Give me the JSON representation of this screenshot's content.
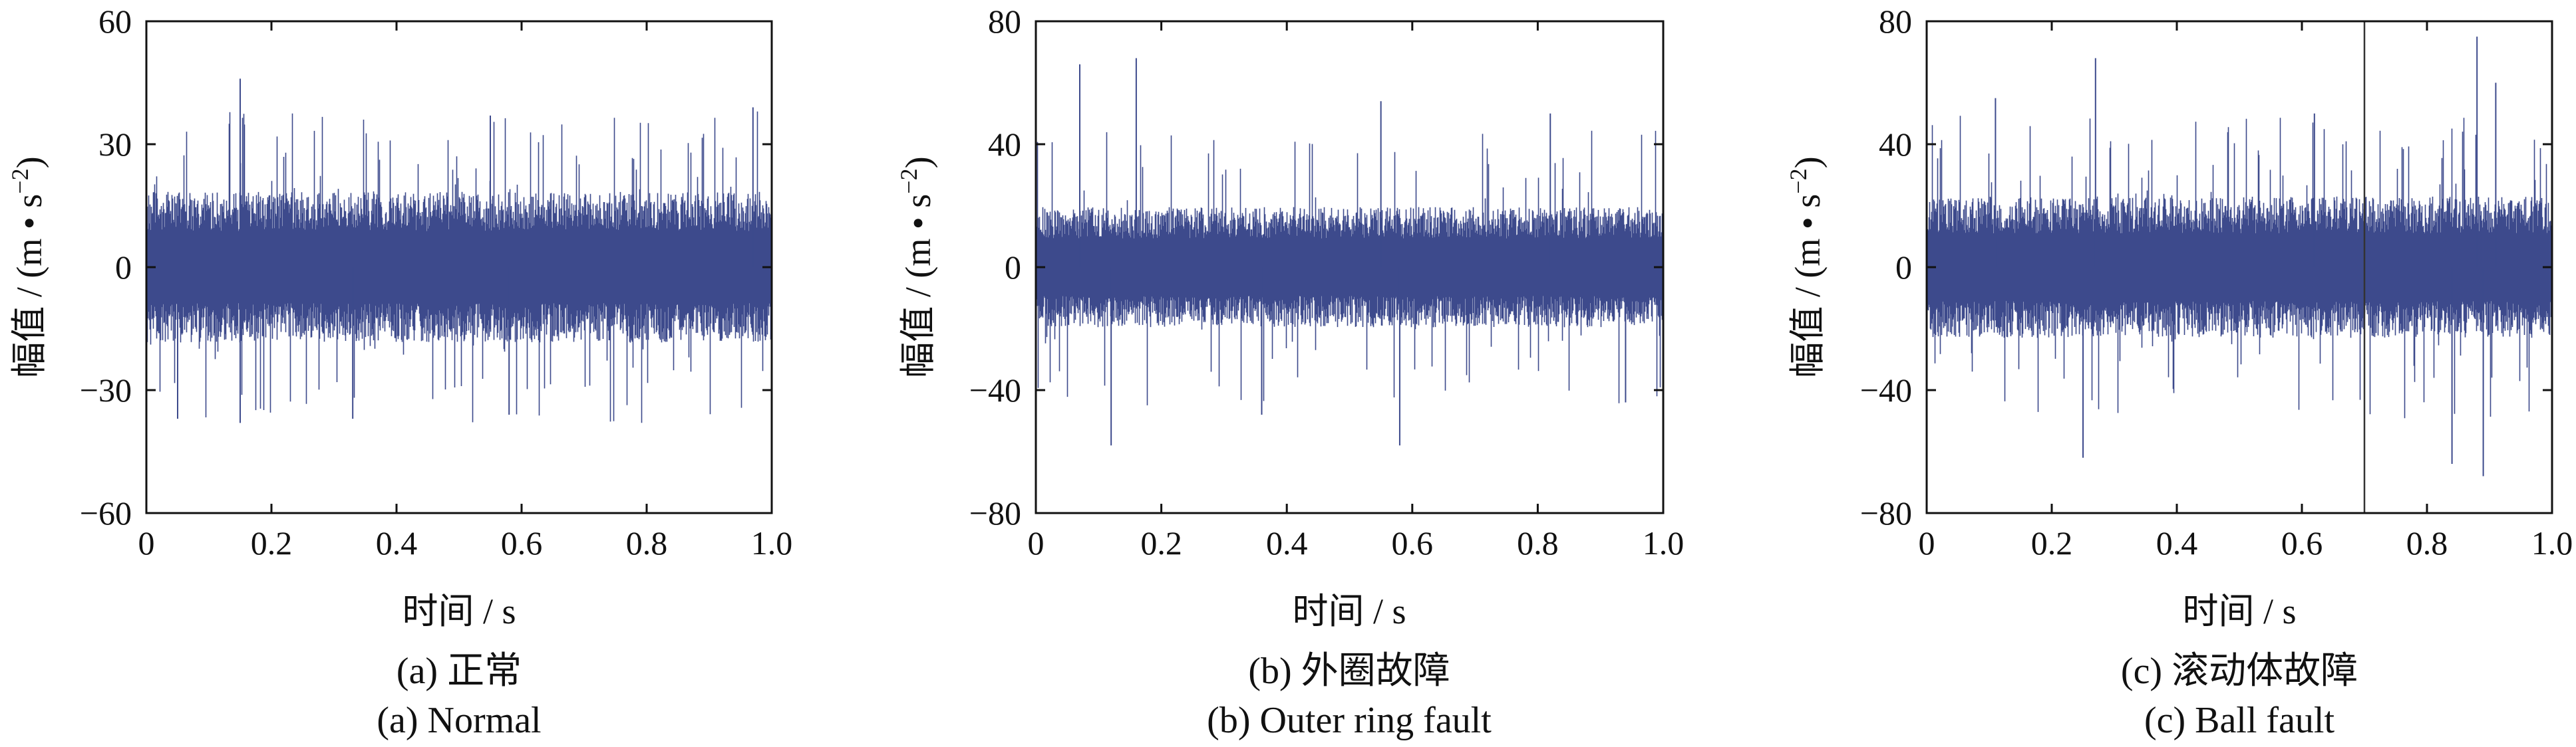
{
  "figure": {
    "background": "#ffffff",
    "signal_color": "#3d4a8c",
    "axis_color": "#111111"
  },
  "chart_data": [
    {
      "type": "line",
      "id": "a",
      "caption_cn": "(a) 正常",
      "caption_en": "(a) Normal",
      "xlabel": "时间 / s",
      "ylabel_main": "幅值 / (m • s",
      "ylabel_exp": "−2",
      "ylabel_close": ")",
      "xlim": [
        0,
        1.0
      ],
      "ylim": [
        -60,
        60
      ],
      "xticks": [
        0,
        0.2,
        0.4,
        0.6,
        0.8,
        1.0
      ],
      "xtick_labels": [
        "0",
        "0.2",
        "0.4",
        "0.6",
        "0.8",
        "1.0"
      ],
      "yticks": [
        -60,
        -30,
        0,
        30,
        60
      ],
      "ytick_labels": [
        "−60",
        "−30",
        "0",
        "30",
        "60"
      ],
      "series": [
        {
          "band": 16,
          "peak": 38,
          "peak_prob": 0.06,
          "spikes": [
            [
              0.15,
              46
            ],
            [
              0.55,
              37
            ],
            [
              0.33,
              -37
            ],
            [
              0.15,
              -38
            ],
            [
              0.58,
              -36
            ],
            [
              0.97,
              39
            ],
            [
              0.05,
              -37
            ]
          ]
        }
      ]
    },
    {
      "type": "line",
      "id": "b",
      "caption_cn": "(b) 外圈故障",
      "caption_en": "(b) Outer ring fault",
      "xlabel": "时间 / s",
      "ylabel_main": "幅值 / (m • s",
      "ylabel_exp": "−2",
      "ylabel_close": ")",
      "xlim": [
        0,
        1.0
      ],
      "ylim": [
        -80,
        80
      ],
      "xticks": [
        0,
        0.2,
        0.4,
        0.6,
        0.8,
        1.0
      ],
      "xtick_labels": [
        "0",
        "0.2",
        "0.4",
        "0.6",
        "0.8",
        "1.0"
      ],
      "yticks": [
        -80,
        -40,
        0,
        40,
        80
      ],
      "ytick_labels": [
        "−80",
        "−40",
        "0",
        "40",
        "80"
      ],
      "series": [
        {
          "band": 17,
          "peak": 45,
          "peak_prob": 0.05,
          "spikes": [
            [
              0.07,
              66
            ],
            [
              0.16,
              68
            ],
            [
              0.12,
              -58
            ],
            [
              0.58,
              -58
            ],
            [
              0.55,
              54
            ],
            [
              0.82,
              50
            ],
            [
              0.36,
              -48
            ],
            [
              0.94,
              -44
            ]
          ]
        }
      ]
    },
    {
      "type": "line",
      "id": "c",
      "caption_cn": "(c) 滚动体故障",
      "caption_en": "(c) Ball fault",
      "xlabel": "时间 / s",
      "ylabel_main": "幅值 / (m • s",
      "ylabel_exp": "−2",
      "ylabel_close": ")",
      "xlim": [
        0,
        1.0
      ],
      "ylim": [
        -80,
        80
      ],
      "xticks": [
        0,
        0.2,
        0.4,
        0.6,
        0.8,
        1.0
      ],
      "xtick_labels": [
        "0",
        "0.2",
        "0.4",
        "0.6",
        "0.8",
        "1.0"
      ],
      "yticks": [
        -80,
        -40,
        0,
        40,
        80
      ],
      "ytick_labels": [
        "−80",
        "−40",
        "0",
        "40",
        "80"
      ],
      "vline_x": 0.7,
      "series": [
        {
          "band": 20,
          "peak": 50,
          "peak_prob": 0.06,
          "spikes": [
            [
              0.27,
              68
            ],
            [
              0.88,
              75
            ],
            [
              0.91,
              60
            ],
            [
              0.25,
              -62
            ],
            [
              0.84,
              -64
            ],
            [
              0.89,
              -68
            ],
            [
              0.62,
              50
            ],
            [
              0.11,
              55
            ]
          ]
        }
      ]
    }
  ]
}
